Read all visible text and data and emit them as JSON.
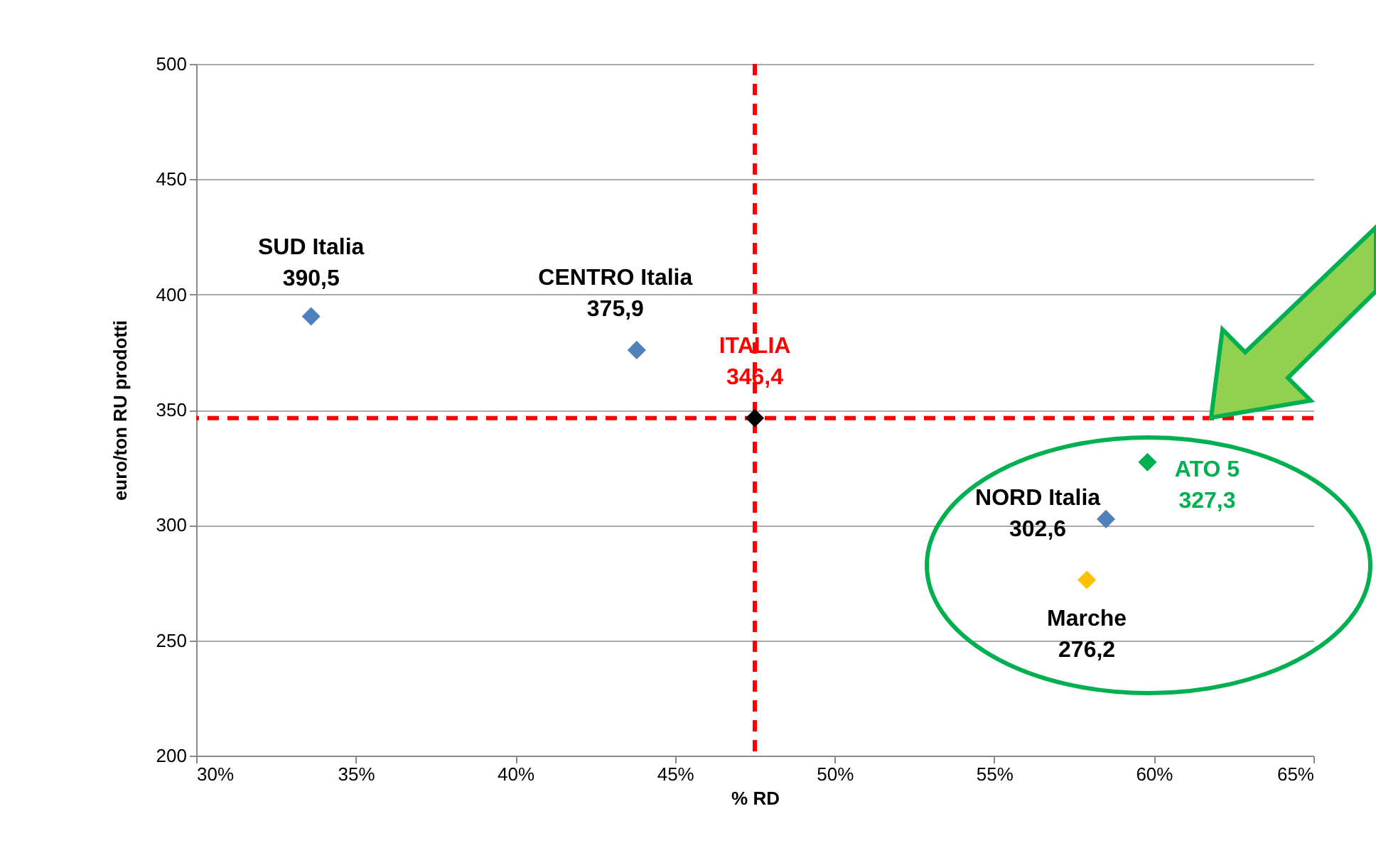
{
  "chart_data": {
    "type": "scatter",
    "xlabel": "% RD",
    "ylabel": "euro/ton RU prodotti",
    "x": [
      33.6,
      43.8,
      47.5,
      58.5,
      57.9,
      59.8
    ],
    "values": [
      390.5,
      375.9,
      346.4,
      302.6,
      276.2,
      327.3
    ],
    "colors": [
      "#4f81bd",
      "#4f81bd",
      "#000000",
      "#4f81bd",
      "#ffc000",
      "#00b050"
    ],
    "value_labels": [
      "390,5",
      "375,9",
      "346,4",
      "302,6",
      "276,2",
      "327,3"
    ],
    "annotations": [
      {
        "text": "SUD Italia",
        "x": 33.6,
        "y": 390.5
      },
      {
        "text": "CENTRO Italia",
        "x": 43.8,
        "y": 375.9
      },
      {
        "text": "ITALIA",
        "x": 47.5,
        "y": 346.4
      },
      {
        "text": "NORD Italia",
        "x": 58.5,
        "y": 302.6
      },
      {
        "text": "Marche",
        "x": 57.9,
        "y": 276.2
      },
      {
        "text": "ATO 5",
        "x": 59.8,
        "y": 327.3
      }
    ],
    "xlim": [
      30,
      65
    ],
    "xticks": [
      {
        "value": 30,
        "label": "30%"
      },
      {
        "value": 35,
        "label": "35%"
      },
      {
        "value": 40,
        "label": "40%"
      },
      {
        "value": 45,
        "label": "45%"
      },
      {
        "value": 50,
        "label": "50%"
      },
      {
        "value": 55,
        "label": "55%"
      },
      {
        "value": 60,
        "label": "60%"
      },
      {
        "value": 65,
        "label": "65%"
      }
    ],
    "ylim": [
      200,
      500
    ],
    "yticks": [
      200,
      250,
      300,
      350,
      400,
      450,
      500
    ],
    "ref_lines": [
      {
        "axis": "x",
        "value": 47.5,
        "color": "#ff0000",
        "line_style": "dashed"
      },
      {
        "axis": "y",
        "value": 346.4,
        "color": "#ff0000",
        "line_style": "dashed"
      }
    ],
    "grid": "y",
    "marker": "diamond",
    "legend": false
  }
}
